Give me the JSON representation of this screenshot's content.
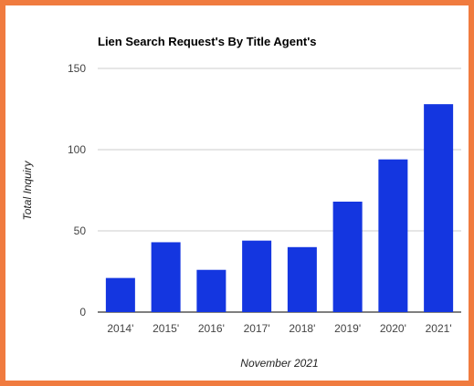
{
  "colors": {
    "frame_border": "#f07b3f",
    "bar": "#1436e0",
    "grid": "#cccccc",
    "baseline": "#333333"
  },
  "chart_data": {
    "type": "bar",
    "title": "Lien Search Request's By Title Agent's",
    "xlabel": "November 2021",
    "ylabel": "Total Inquiry",
    "categories": [
      "2014'",
      "2015'",
      "2016'",
      "2017'",
      "2018'",
      "2019'",
      "2020'",
      "2021'"
    ],
    "values": [
      21,
      43,
      26,
      44,
      40,
      68,
      94,
      128
    ],
    "ylim": [
      0,
      150
    ],
    "yticks": [
      0,
      50,
      100,
      150
    ],
    "grid": true,
    "legend": "none"
  }
}
